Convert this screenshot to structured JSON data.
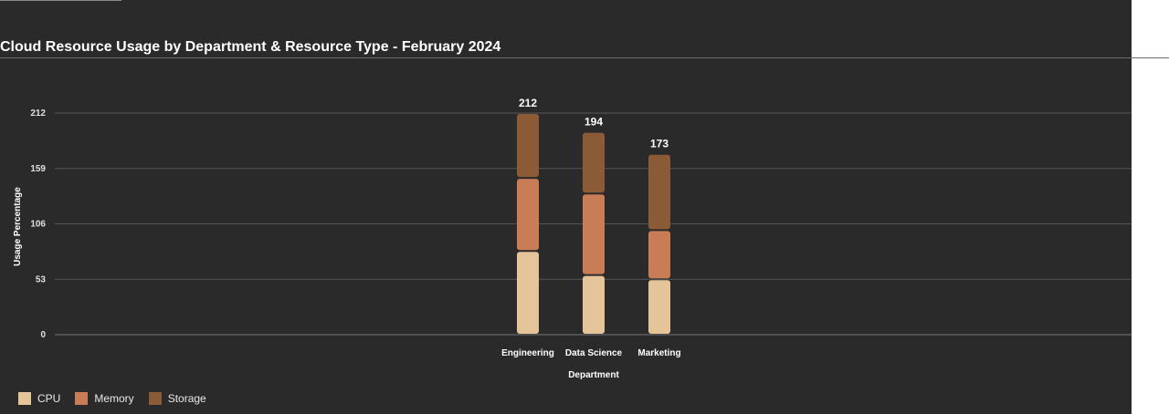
{
  "chart_data": {
    "type": "bar",
    "stacked": true,
    "title": "Cloud Resource Usage by Department & Resource Type - February 2024",
    "xlabel": "Department",
    "ylabel": "Usage Percentage",
    "categories": [
      "Engineering",
      "Data Science",
      "Marketing"
    ],
    "series": [
      {
        "name": "CPU",
        "color": "#e5c49a",
        "values": [
          80,
          57,
          53
        ]
      },
      {
        "name": "Memory",
        "color": "#c97d56",
        "values": [
          70,
          78,
          47
        ]
      },
      {
        "name": "Storage",
        "color": "#8b5a36",
        "values": [
          62,
          59,
          73
        ]
      }
    ],
    "totals": [
      "212",
      "194",
      "173"
    ],
    "yticks": [
      0,
      53,
      106,
      159,
      212
    ],
    "ytick_labels": [
      "0",
      "53",
      "106",
      "159",
      "212"
    ],
    "ylim": [
      0,
      212
    ],
    "grid": true,
    "legend_position": "bottom-left"
  }
}
